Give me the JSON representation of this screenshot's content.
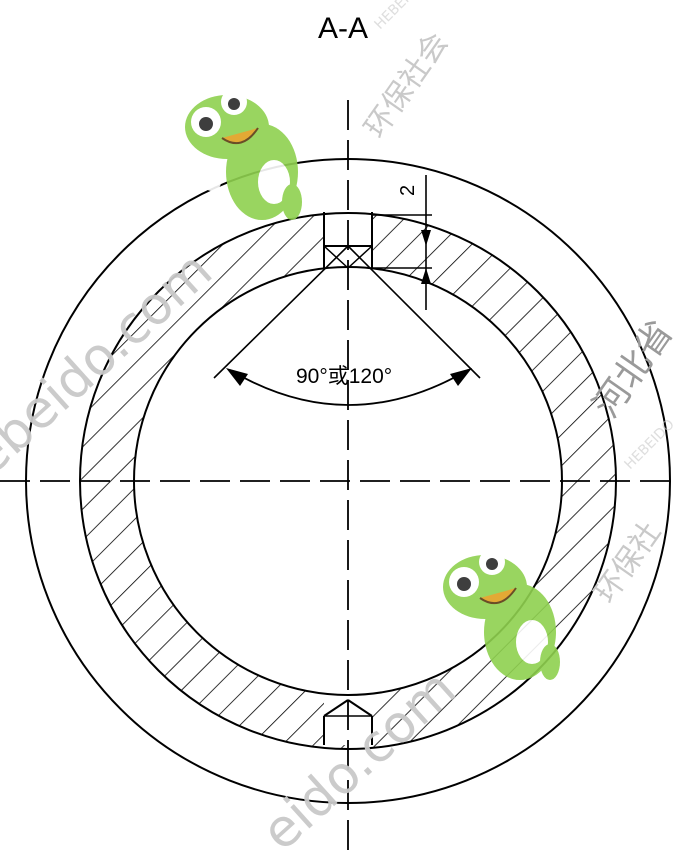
{
  "section_title": "A-A",
  "dimension_depth": "2",
  "angle_label": "90°或120°",
  "watermarks": {
    "domain_fragment_1": "ebeido.com",
    "domain_fragment_2": "eido.com",
    "brand_1": "河北省",
    "brand_2": "环保社会",
    "brand_3": "环保社",
    "brand_4": "环保",
    "faint_1": "HEBEIDO",
    "faint_2": "HEBEIDO"
  },
  "colors": {
    "line": "#000000",
    "watermark": "#c9c9c9",
    "mascot_green": "#8fd14f"
  },
  "icons": [
    "frog-mascot-icon",
    "frog-mascot-icon"
  ]
}
